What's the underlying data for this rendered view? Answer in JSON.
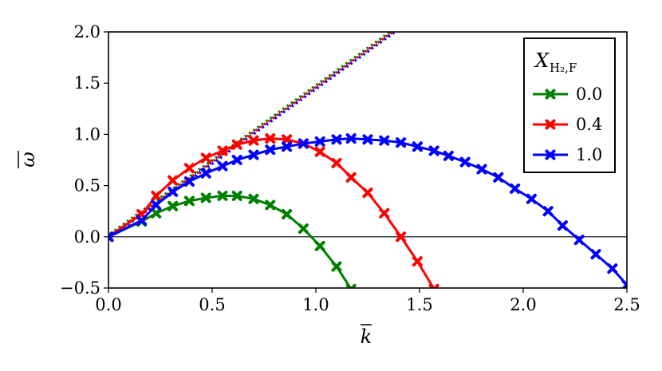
{
  "chart_data": {
    "type": "line",
    "xlabel": "k",
    "ylabel": "ω",
    "xlim": [
      0.0,
      2.5
    ],
    "ylim": [
      -0.5,
      2.0
    ],
    "x_ticks": [
      "0.0",
      "0.5",
      "1.0",
      "1.5",
      "2.0",
      "2.5"
    ],
    "y_ticks": [
      "−0.5",
      "0.0",
      "0.5",
      "1.0",
      "1.5",
      "2.0"
    ],
    "x_tick_values": [
      0.0,
      0.5,
      1.0,
      1.5,
      2.0,
      2.5
    ],
    "y_tick_values": [
      -0.5,
      0.0,
      0.5,
      1.0,
      1.5,
      2.0
    ],
    "legend_title": "X",
    "legend_title_subscript": "H₂,F",
    "legend_position": "top-right",
    "grid": false,
    "zero_line": 0.0,
    "series": [
      {
        "name": "0.0",
        "color": "#008000",
        "marker": "x-cross",
        "x": [
          0.0,
          0.16,
          0.23,
          0.31,
          0.39,
          0.47,
          0.55,
          0.62,
          0.7,
          0.78,
          0.86,
          0.94,
          1.02,
          1.1,
          1.17
        ],
        "y": [
          0.0,
          0.15,
          0.23,
          0.3,
          0.35,
          0.38,
          0.4,
          0.4,
          0.37,
          0.31,
          0.22,
          0.08,
          -0.09,
          -0.29,
          -0.51
        ],
        "tangent": {
          "x": [
            0.0,
            1.37
          ],
          "y": [
            0.0,
            2.0
          ],
          "style": "dotted"
        }
      },
      {
        "name": "0.4",
        "color": "#ff0000",
        "marker": "x-cross",
        "x": [
          0.0,
          0.16,
          0.23,
          0.31,
          0.39,
          0.47,
          0.55,
          0.62,
          0.7,
          0.78,
          0.86,
          0.94,
          1.02,
          1.1,
          1.17,
          1.25,
          1.33,
          1.41,
          1.49,
          1.57
        ],
        "y": [
          0.0,
          0.22,
          0.4,
          0.55,
          0.67,
          0.77,
          0.84,
          0.9,
          0.94,
          0.96,
          0.95,
          0.91,
          0.83,
          0.72,
          0.58,
          0.43,
          0.23,
          0.0,
          -0.24,
          -0.51
        ],
        "tangent": {
          "x": [
            0.0,
            1.37
          ],
          "y": [
            0.0,
            2.0
          ],
          "style": "dotted"
        }
      },
      {
        "name": "1.0",
        "color": "#0000ff",
        "marker": "x-cross",
        "x": [
          0.0,
          0.16,
          0.23,
          0.31,
          0.39,
          0.47,
          0.55,
          0.62,
          0.7,
          0.78,
          0.86,
          0.94,
          1.02,
          1.1,
          1.17,
          1.25,
          1.33,
          1.41,
          1.49,
          1.57,
          1.64,
          1.72,
          1.8,
          1.88,
          1.96,
          2.04,
          2.12,
          2.19,
          2.27,
          2.35,
          2.43,
          2.5
        ],
        "y": [
          0.0,
          0.16,
          0.31,
          0.44,
          0.54,
          0.62,
          0.69,
          0.75,
          0.8,
          0.85,
          0.88,
          0.91,
          0.93,
          0.95,
          0.96,
          0.95,
          0.94,
          0.92,
          0.88,
          0.84,
          0.79,
          0.73,
          0.66,
          0.58,
          0.47,
          0.37,
          0.25,
          0.11,
          -0.03,
          -0.17,
          -0.31,
          -0.47
        ],
        "tangent": {
          "x": [
            0.0,
            1.37
          ],
          "y": [
            0.0,
            2.0
          ],
          "style": "dotted"
        }
      }
    ]
  }
}
